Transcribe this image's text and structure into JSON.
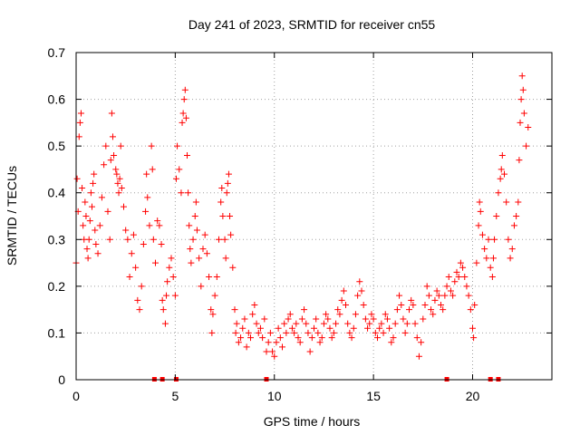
{
  "chart_data": {
    "type": "scatter",
    "title": "Day 241 of 2023, SRMTID for receiver cn55",
    "xlabel": "GPS time / hours",
    "ylabel": "SRMTID / TECUs",
    "xlim": [
      0,
      24
    ],
    "ylim": [
      0,
      0.7
    ],
    "xticks": [
      0,
      5,
      10,
      15,
      20
    ],
    "yticks": [
      0,
      0.1,
      0.2,
      0.3,
      0.4,
      0.5,
      0.6,
      0.7
    ],
    "xtick_labels": [
      "0",
      "5",
      "10",
      "15",
      "20"
    ],
    "ytick_labels": [
      "0",
      "0.1",
      "0.2",
      "0.3",
      "0.4",
      "0.5",
      "0.6",
      "0.7"
    ],
    "grid": true,
    "marker": "plus",
    "color": "#ff0000",
    "series": [
      {
        "name": "SRMTID",
        "points": [
          [
            0.0,
            0.25
          ],
          [
            0.05,
            0.43
          ],
          [
            0.1,
            0.36
          ],
          [
            0.15,
            0.52
          ],
          [
            0.2,
            0.55
          ],
          [
            0.25,
            0.57
          ],
          [
            0.3,
            0.41
          ],
          [
            0.35,
            0.33
          ],
          [
            0.4,
            0.3
          ],
          [
            0.45,
            0.38
          ],
          [
            0.5,
            0.35
          ],
          [
            0.55,
            0.28
          ],
          [
            0.6,
            0.26
          ],
          [
            0.65,
            0.3
          ],
          [
            0.7,
            0.34
          ],
          [
            0.75,
            0.4
          ],
          [
            0.8,
            0.37
          ],
          [
            0.85,
            0.42
          ],
          [
            0.9,
            0.44
          ],
          [
            0.95,
            0.32
          ],
          [
            1.0,
            0.29
          ],
          [
            1.1,
            0.27
          ],
          [
            1.2,
            0.33
          ],
          [
            1.3,
            0.39
          ],
          [
            1.4,
            0.46
          ],
          [
            1.5,
            0.5
          ],
          [
            1.6,
            0.36
          ],
          [
            1.7,
            0.3
          ],
          [
            1.75,
            0.47
          ],
          [
            1.8,
            0.57
          ],
          [
            1.85,
            0.52
          ],
          [
            1.9,
            0.48
          ],
          [
            2.0,
            0.45
          ],
          [
            2.05,
            0.44
          ],
          [
            2.1,
            0.42
          ],
          [
            2.15,
            0.4
          ],
          [
            2.2,
            0.43
          ],
          [
            2.25,
            0.5
          ],
          [
            2.3,
            0.41
          ],
          [
            2.4,
            0.37
          ],
          [
            2.5,
            0.32
          ],
          [
            2.6,
            0.3
          ],
          [
            2.7,
            0.22
          ],
          [
            2.8,
            0.27
          ],
          [
            2.9,
            0.31
          ],
          [
            3.0,
            0.24
          ],
          [
            3.1,
            0.17
          ],
          [
            3.2,
            0.15
          ],
          [
            3.3,
            0.2
          ],
          [
            3.4,
            0.29
          ],
          [
            3.5,
            0.36
          ],
          [
            3.55,
            0.44
          ],
          [
            3.6,
            0.39
          ],
          [
            3.7,
            0.33
          ],
          [
            3.8,
            0.5
          ],
          [
            3.85,
            0.45
          ],
          [
            3.9,
            0.3
          ],
          [
            4.0,
            0.25
          ],
          [
            4.1,
            0.34
          ],
          [
            4.2,
            0.33
          ],
          [
            4.3,
            0.29
          ],
          [
            4.35,
            0.17
          ],
          [
            4.4,
            0.15
          ],
          [
            4.5,
            0.12
          ],
          [
            4.55,
            0.18
          ],
          [
            4.6,
            0.21
          ],
          [
            4.7,
            0.24
          ],
          [
            4.8,
            0.26
          ],
          [
            4.9,
            0.22
          ],
          [
            5.0,
            0.18
          ],
          [
            5.05,
            0.43
          ],
          [
            5.1,
            0.5
          ],
          [
            5.2,
            0.45
          ],
          [
            5.3,
            0.4
          ],
          [
            5.35,
            0.55
          ],
          [
            5.4,
            0.57
          ],
          [
            5.45,
            0.6
          ],
          [
            5.5,
            0.62
          ],
          [
            5.55,
            0.56
          ],
          [
            5.6,
            0.48
          ],
          [
            5.65,
            0.4
          ],
          [
            5.7,
            0.33
          ],
          [
            5.75,
            0.28
          ],
          [
            5.8,
            0.25
          ],
          [
            5.9,
            0.3
          ],
          [
            6.0,
            0.35
          ],
          [
            6.05,
            0.38
          ],
          [
            6.1,
            0.32
          ],
          [
            6.2,
            0.26
          ],
          [
            6.3,
            0.2
          ],
          [
            6.4,
            0.28
          ],
          [
            6.5,
            0.31
          ],
          [
            6.6,
            0.27
          ],
          [
            6.7,
            0.22
          ],
          [
            6.8,
            0.15
          ],
          [
            6.85,
            0.1
          ],
          [
            6.9,
            0.14
          ],
          [
            7.0,
            0.18
          ],
          [
            7.1,
            0.22
          ],
          [
            7.2,
            0.3
          ],
          [
            7.3,
            0.38
          ],
          [
            7.35,
            0.41
          ],
          [
            7.4,
            0.35
          ],
          [
            7.5,
            0.3
          ],
          [
            7.55,
            0.26
          ],
          [
            7.6,
            0.4
          ],
          [
            7.65,
            0.42
          ],
          [
            7.7,
            0.44
          ],
          [
            7.75,
            0.35
          ],
          [
            7.8,
            0.31
          ],
          [
            7.9,
            0.24
          ],
          [
            8.0,
            0.15
          ],
          [
            8.05,
            0.1
          ],
          [
            8.1,
            0.12
          ],
          [
            8.2,
            0.08
          ],
          [
            8.3,
            0.09
          ],
          [
            8.4,
            0.11
          ],
          [
            8.5,
            0.13
          ],
          [
            8.6,
            0.07
          ],
          [
            8.7,
            0.1
          ],
          [
            8.8,
            0.09
          ],
          [
            8.9,
            0.14
          ],
          [
            9.0,
            0.16
          ],
          [
            9.1,
            0.12
          ],
          [
            9.2,
            0.1
          ],
          [
            9.3,
            0.11
          ],
          [
            9.4,
            0.09
          ],
          [
            9.5,
            0.13
          ],
          [
            9.6,
            0.06
          ],
          [
            9.7,
            0.08
          ],
          [
            9.8,
            0.1
          ],
          [
            9.9,
            0.06
          ],
          [
            10.0,
            0.05
          ],
          [
            10.1,
            0.08
          ],
          [
            10.2,
            0.11
          ],
          [
            10.3,
            0.09
          ],
          [
            10.4,
            0.07
          ],
          [
            10.5,
            0.12
          ],
          [
            10.6,
            0.1
          ],
          [
            10.7,
            0.13
          ],
          [
            10.8,
            0.14
          ],
          [
            10.9,
            0.11
          ],
          [
            11.0,
            0.1
          ],
          [
            11.1,
            0.12
          ],
          [
            11.2,
            0.09
          ],
          [
            11.3,
            0.08
          ],
          [
            11.4,
            0.13
          ],
          [
            11.5,
            0.15
          ],
          [
            11.6,
            0.12
          ],
          [
            11.7,
            0.1
          ],
          [
            11.8,
            0.06
          ],
          [
            11.9,
            0.09
          ],
          [
            12.0,
            0.11
          ],
          [
            12.1,
            0.13
          ],
          [
            12.2,
            0.1
          ],
          [
            12.3,
            0.08
          ],
          [
            12.4,
            0.09
          ],
          [
            12.5,
            0.12
          ],
          [
            12.6,
            0.14
          ],
          [
            12.7,
            0.13
          ],
          [
            12.8,
            0.11
          ],
          [
            12.9,
            0.09
          ],
          [
            13.0,
            0.1
          ],
          [
            13.1,
            0.12
          ],
          [
            13.2,
            0.15
          ],
          [
            13.3,
            0.14
          ],
          [
            13.4,
            0.17
          ],
          [
            13.5,
            0.19
          ],
          [
            13.6,
            0.16
          ],
          [
            13.7,
            0.12
          ],
          [
            13.8,
            0.1
          ],
          [
            13.9,
            0.09
          ],
          [
            14.0,
            0.11
          ],
          [
            14.1,
            0.14
          ],
          [
            14.2,
            0.18
          ],
          [
            14.3,
            0.21
          ],
          [
            14.4,
            0.19
          ],
          [
            14.5,
            0.16
          ],
          [
            14.6,
            0.13
          ],
          [
            14.7,
            0.11
          ],
          [
            14.8,
            0.12
          ],
          [
            14.9,
            0.14
          ],
          [
            15.0,
            0.13
          ],
          [
            15.1,
            0.1
          ],
          [
            15.2,
            0.09
          ],
          [
            15.3,
            0.11
          ],
          [
            15.4,
            0.12
          ],
          [
            15.5,
            0.1
          ],
          [
            15.6,
            0.14
          ],
          [
            15.7,
            0.13
          ],
          [
            15.8,
            0.11
          ],
          [
            15.9,
            0.08
          ],
          [
            16.0,
            0.09
          ],
          [
            16.1,
            0.12
          ],
          [
            16.2,
            0.15
          ],
          [
            16.3,
            0.18
          ],
          [
            16.4,
            0.16
          ],
          [
            16.5,
            0.13
          ],
          [
            16.6,
            0.1
          ],
          [
            16.7,
            0.12
          ],
          [
            16.8,
            0.15
          ],
          [
            16.9,
            0.17
          ],
          [
            17.0,
            0.16
          ],
          [
            17.1,
            0.12
          ],
          [
            17.2,
            0.09
          ],
          [
            17.3,
            0.05
          ],
          [
            17.4,
            0.08
          ],
          [
            17.5,
            0.13
          ],
          [
            17.6,
            0.16
          ],
          [
            17.7,
            0.2
          ],
          [
            17.8,
            0.18
          ],
          [
            17.9,
            0.15
          ],
          [
            18.0,
            0.14
          ],
          [
            18.1,
            0.17
          ],
          [
            18.2,
            0.19
          ],
          [
            18.3,
            0.18
          ],
          [
            18.4,
            0.16
          ],
          [
            18.5,
            0.15
          ],
          [
            18.6,
            0.18
          ],
          [
            18.7,
            0.2
          ],
          [
            18.8,
            0.22
          ],
          [
            18.9,
            0.19
          ],
          [
            19.0,
            0.18
          ],
          [
            19.1,
            0.21
          ],
          [
            19.2,
            0.23
          ],
          [
            19.3,
            0.22
          ],
          [
            19.4,
            0.25
          ],
          [
            19.5,
            0.24
          ],
          [
            19.6,
            0.22
          ],
          [
            19.7,
            0.2
          ],
          [
            19.8,
            0.18
          ],
          [
            19.9,
            0.15
          ],
          [
            20.0,
            0.11
          ],
          [
            20.05,
            0.09
          ],
          [
            20.1,
            0.16
          ],
          [
            20.2,
            0.25
          ],
          [
            20.3,
            0.33
          ],
          [
            20.35,
            0.38
          ],
          [
            20.4,
            0.36
          ],
          [
            20.5,
            0.31
          ],
          [
            20.6,
            0.28
          ],
          [
            20.7,
            0.26
          ],
          [
            20.8,
            0.3
          ],
          [
            20.9,
            0.24
          ],
          [
            21.0,
            0.22
          ],
          [
            21.05,
            0.26
          ],
          [
            21.1,
            0.3
          ],
          [
            21.2,
            0.35
          ],
          [
            21.3,
            0.4
          ],
          [
            21.4,
            0.43
          ],
          [
            21.45,
            0.45
          ],
          [
            21.5,
            0.48
          ],
          [
            21.6,
            0.44
          ],
          [
            21.7,
            0.38
          ],
          [
            21.8,
            0.3
          ],
          [
            21.9,
            0.26
          ],
          [
            22.0,
            0.28
          ],
          [
            22.1,
            0.33
          ],
          [
            22.2,
            0.35
          ],
          [
            22.3,
            0.38
          ],
          [
            22.35,
            0.47
          ],
          [
            22.4,
            0.55
          ],
          [
            22.45,
            0.6
          ],
          [
            22.5,
            0.65
          ],
          [
            22.55,
            0.62
          ],
          [
            22.6,
            0.57
          ],
          [
            22.7,
            0.5
          ],
          [
            22.8,
            0.54
          ]
        ]
      }
    ],
    "gap_markers_x": [
      3.95,
      4.35,
      5.05,
      9.6,
      18.7,
      20.9,
      21.3
    ]
  }
}
